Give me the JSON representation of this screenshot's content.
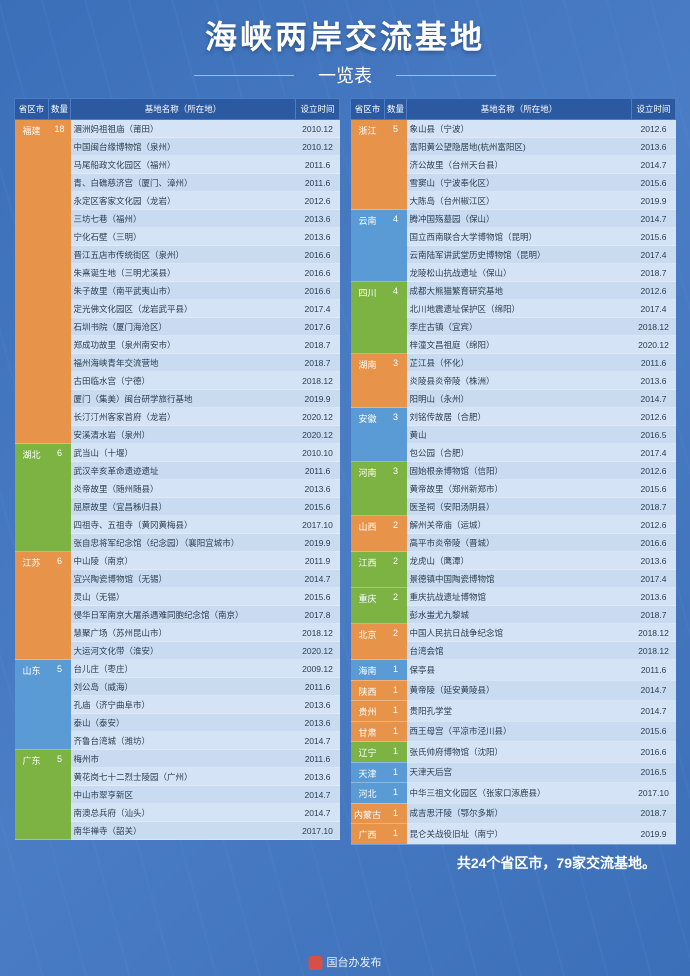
{
  "title": "海峡两岸交流基地",
  "subtitle": "一览表",
  "headers": [
    "省区市",
    "数量",
    "基地名称（所在地）",
    "设立时间"
  ],
  "footer": "共24个省区市，79家交流基地。",
  "credit": "国台办发布",
  "left": [
    {
      "prov": "福建",
      "cls": "c-fujian",
      "cnt": "18",
      "rows": [
        [
          "湄洲妈祖祖庙（莆田）",
          "2010.12"
        ],
        [
          "中国闽台缘博物馆（泉州）",
          "2010.12"
        ],
        [
          "马尾船政文化园区（福州）",
          "2011.6"
        ],
        [
          "青、白礁慈济宫（厦门、漳州）",
          "2011.6"
        ],
        [
          "永定区客家文化园（龙岩）",
          "2012.6"
        ],
        [
          "三坊七巷（福州）",
          "2013.6"
        ],
        [
          "宁化石壁（三明）",
          "2013.6"
        ],
        [
          "晋江五店市传统街区（泉州）",
          "2016.6"
        ],
        [
          "朱熹诞生地（三明尤溪县）",
          "2016.6"
        ],
        [
          "朱子故里（南平武夷山市）",
          "2016.6"
        ],
        [
          "定光佛文化园区（龙岩武平县）",
          "2017.4"
        ],
        [
          "石圳书院（厦门海沧区）",
          "2017.6"
        ],
        [
          "郑成功故里（泉州南安市）",
          "2018.7"
        ],
        [
          "福州海峡青年交流营地",
          "2018.7"
        ],
        [
          "古田临水宫（宁德）",
          "2018.12"
        ],
        [
          "厦门（集美）闽台研学旅行基地",
          "2019.9"
        ],
        [
          "长汀汀州客家首府（龙岩）",
          "2020.12"
        ],
        [
          "安溪清水岩（泉州）",
          "2020.12"
        ]
      ]
    },
    {
      "prov": "湖北",
      "cls": "c-hubei",
      "cnt": "6",
      "rows": [
        [
          "武当山（十堰）",
          "2010.10"
        ],
        [
          "武汉辛亥革命遗迹遗址",
          "2011.6"
        ],
        [
          "炎帝故里（随州随县）",
          "2013.6"
        ],
        [
          "屈原故里（宜昌秭归县）",
          "2015.6"
        ],
        [
          "四祖寺、五祖寺（黄冈黄梅县）",
          "2017.10"
        ],
        [
          "张自忠将军纪念馆（纪念园）（襄阳宜城市）",
          "2019.9"
        ]
      ]
    },
    {
      "prov": "江苏",
      "cls": "c-jiangsu",
      "cnt": "6",
      "rows": [
        [
          "中山陵（南京）",
          "2011.9"
        ],
        [
          "宜兴陶瓷博物馆（无锡）",
          "2014.7"
        ],
        [
          "灵山（无锡）",
          "2015.6"
        ],
        [
          "侵华日军南京大屠杀遇难同胞纪念馆（南京）",
          "2017.8"
        ],
        [
          "慧聚广场（苏州昆山市）",
          "2018.12"
        ],
        [
          "大运河文化带（淮安）",
          "2020.12"
        ]
      ]
    },
    {
      "prov": "山东",
      "cls": "c-shandong",
      "cnt": "5",
      "rows": [
        [
          "台儿庄（枣庄）",
          "2009.12"
        ],
        [
          "刘公岛（威海）",
          "2011.6"
        ],
        [
          "孔庙（济宁曲阜市）",
          "2013.6"
        ],
        [
          "泰山（泰安）",
          "2013.6"
        ],
        [
          "齐鲁台湾城（潍坊）",
          "2014.7"
        ]
      ]
    },
    {
      "prov": "广东",
      "cls": "c-guangdong",
      "cnt": "5",
      "rows": [
        [
          "梅州市",
          "2011.6"
        ],
        [
          "黄花岗七十二烈士陵园（广州）",
          "2013.6"
        ],
        [
          "中山市翠亨新区",
          "2014.7"
        ],
        [
          "南澳总兵府（汕头）",
          "2014.7"
        ],
        [
          "南华禅寺（韶关）",
          "2017.10"
        ]
      ]
    }
  ],
  "right": [
    {
      "prov": "浙江",
      "cls": "c-zhejiang",
      "cnt": "5",
      "rows": [
        [
          "象山县（宁波）",
          "2012.6"
        ],
        [
          "富阳黄公望隐居地(杭州富阳区)",
          "2013.6"
        ],
        [
          "济公故里（台州天台县）",
          "2014.7"
        ],
        [
          "雪窦山（宁波奉化区）",
          "2015.6"
        ],
        [
          "大陈岛（台州椒江区）",
          "2019.9"
        ]
      ]
    },
    {
      "prov": "云南",
      "cls": "c-yunnan",
      "cnt": "4",
      "rows": [
        [
          "腾冲国殇墓园（保山）",
          "2014.7"
        ],
        [
          "国立西南联合大学博物馆（昆明）",
          "2015.6"
        ],
        [
          "云南陆军讲武堂历史博物馆（昆明）",
          "2017.4"
        ],
        [
          "龙陵松山抗战遗址（保山）",
          "2018.7"
        ]
      ]
    },
    {
      "prov": "四川",
      "cls": "c-sichuan",
      "cnt": "4",
      "rows": [
        [
          "成都大熊猫繁育研究基地",
          "2012.6"
        ],
        [
          "北川地震遗址保护区（绵阳）",
          "2017.4"
        ],
        [
          "李庄古镇（宜宾）",
          "2018.12"
        ],
        [
          "梓潼文昌祖庭（绵阳）",
          "2020.12"
        ]
      ]
    },
    {
      "prov": "湖南",
      "cls": "c-hunan",
      "cnt": "3",
      "rows": [
        [
          "芷江县（怀化）",
          "2011.6"
        ],
        [
          "炎陵县炎帝陵（株洲）",
          "2013.6"
        ],
        [
          "阳明山（永州）",
          "2014.7"
        ]
      ]
    },
    {
      "prov": "安徽",
      "cls": "c-anhui",
      "cnt": "3",
      "rows": [
        [
          "刘铭传故居（合肥）",
          "2012.6"
        ],
        [
          "黄山",
          "2016.5"
        ],
        [
          "包公园（合肥）",
          "2017.4"
        ]
      ]
    },
    {
      "prov": "河南",
      "cls": "c-henan",
      "cnt": "3",
      "rows": [
        [
          "固始根亲博物馆（信阳）",
          "2012.6"
        ],
        [
          "黄帝故里（郑州新郑市）",
          "2015.6"
        ],
        [
          "医圣祠（安阳汤阴县）",
          "2018.7"
        ]
      ]
    },
    {
      "prov": "山西",
      "cls": "c-shanxi",
      "cnt": "2",
      "rows": [
        [
          "解州关帝庙（运城）",
          "2012.6"
        ],
        [
          "高平市炎帝陵（晋城）",
          "2016.6"
        ]
      ]
    },
    {
      "prov": "江西",
      "cls": "c-jiangxi",
      "cnt": "2",
      "rows": [
        [
          "龙虎山（鹰潭）",
          "2013.6"
        ],
        [
          "景德镇中国陶瓷博物馆",
          "2017.4"
        ]
      ]
    },
    {
      "prov": "重庆",
      "cls": "c-chongqing",
      "cnt": "2",
      "rows": [
        [
          "重庆抗战遗址博物馆",
          "2013.6"
        ],
        [
          "彭水蚩尤九黎城",
          "2018.7"
        ]
      ]
    },
    {
      "prov": "北京",
      "cls": "c-beijing",
      "cnt": "2",
      "rows": [
        [
          "中国人民抗日战争纪念馆",
          "2018.12"
        ],
        [
          "台湾会馆",
          "2018.12"
        ]
      ]
    },
    {
      "prov": "海南",
      "cls": "c-hainan",
      "cnt": "1",
      "rows": [
        [
          "保亭县",
          "2011.6"
        ]
      ]
    },
    {
      "prov": "陕西",
      "cls": "c-shaanxi",
      "cnt": "1",
      "rows": [
        [
          "黄帝陵（延安黄陵县）",
          "2014.7"
        ]
      ]
    },
    {
      "prov": "贵州",
      "cls": "c-guizhou",
      "cnt": "1",
      "rows": [
        [
          "贵阳孔学堂",
          "2014.7"
        ]
      ]
    },
    {
      "prov": "甘肃",
      "cls": "c-gansu",
      "cnt": "1",
      "rows": [
        [
          "西王母宫（平凉市泾川县）",
          "2015.6"
        ]
      ]
    },
    {
      "prov": "辽宁",
      "cls": "c-liaoning",
      "cnt": "1",
      "rows": [
        [
          "张氏帅府博物馆（沈阳）",
          "2016.6"
        ]
      ]
    },
    {
      "prov": "天津",
      "cls": "c-tianjin",
      "cnt": "1",
      "rows": [
        [
          "天津天后宫",
          "2016.5"
        ]
      ]
    },
    {
      "prov": "河北",
      "cls": "c-hebei",
      "cnt": "1",
      "rows": [
        [
          "中华三祖文化园区（张家口涿鹿县）",
          "2017.10"
        ]
      ]
    },
    {
      "prov": "内蒙古",
      "cls": "c-neimeng",
      "cnt": "1",
      "rows": [
        [
          "成吉思汗陵（鄂尔多斯）",
          "2018.7"
        ]
      ]
    },
    {
      "prov": "广西",
      "cls": "c-guangxi",
      "cnt": "1",
      "rows": [
        [
          "昆仑关战役旧址（南宁）",
          "2019.9"
        ]
      ]
    }
  ]
}
